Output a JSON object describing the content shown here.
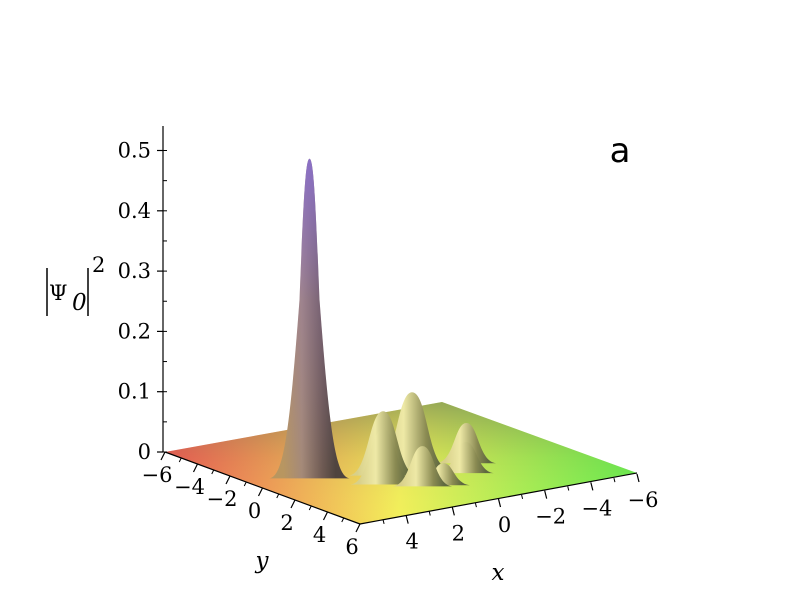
{
  "chart_data": {
    "type": "surface3d",
    "panel_label": "a",
    "zlabel": {
      "base": "|Ψ",
      "sub": "0",
      "bar": "|",
      "sup": "2"
    },
    "xlabel": "x",
    "ylabel": "y",
    "x_range": [
      -6,
      6
    ],
    "y_range": [
      -6,
      6
    ],
    "z_range": [
      0,
      0.52
    ],
    "z_ticks": [
      0,
      0.1,
      0.2,
      0.3,
      0.4,
      0.5
    ],
    "z_tick_labels": [
      "0",
      "0.1",
      "0.2",
      "0.3",
      "0.4",
      "0.5"
    ],
    "x_ticks": [
      4,
      2,
      0,
      -2,
      -4,
      -6
    ],
    "x_tick_labels": [
      "4",
      "2",
      "0",
      "−2",
      "−4",
      "−6"
    ],
    "y_ticks": [
      -6,
      -4,
      -2,
      0,
      2,
      4,
      6
    ],
    "y_tick_labels": [
      "−6",
      "−4",
      "−2",
      "0",
      "2",
      "4",
      "6"
    ],
    "peaks": [
      {
        "x": 3.4,
        "y": -0.8,
        "height": 0.52
      },
      {
        "x": 1.2,
        "y": 0.6,
        "height": 0.1
      },
      {
        "x": 1.9,
        "y": 1.6,
        "height": 0.085
      },
      {
        "x": -0.2,
        "y": 0.4,
        "height": 0.12
      },
      {
        "x": 0.9,
        "y": 2.6,
        "height": 0.06
      },
      {
        "x": -1.4,
        "y": 2.0,
        "height": 0.045
      },
      {
        "x": -2.2,
        "y": 0.9,
        "height": 0.06
      },
      {
        "x": 0.2,
        "y": 2.9,
        "height": 0.03
      }
    ]
  }
}
